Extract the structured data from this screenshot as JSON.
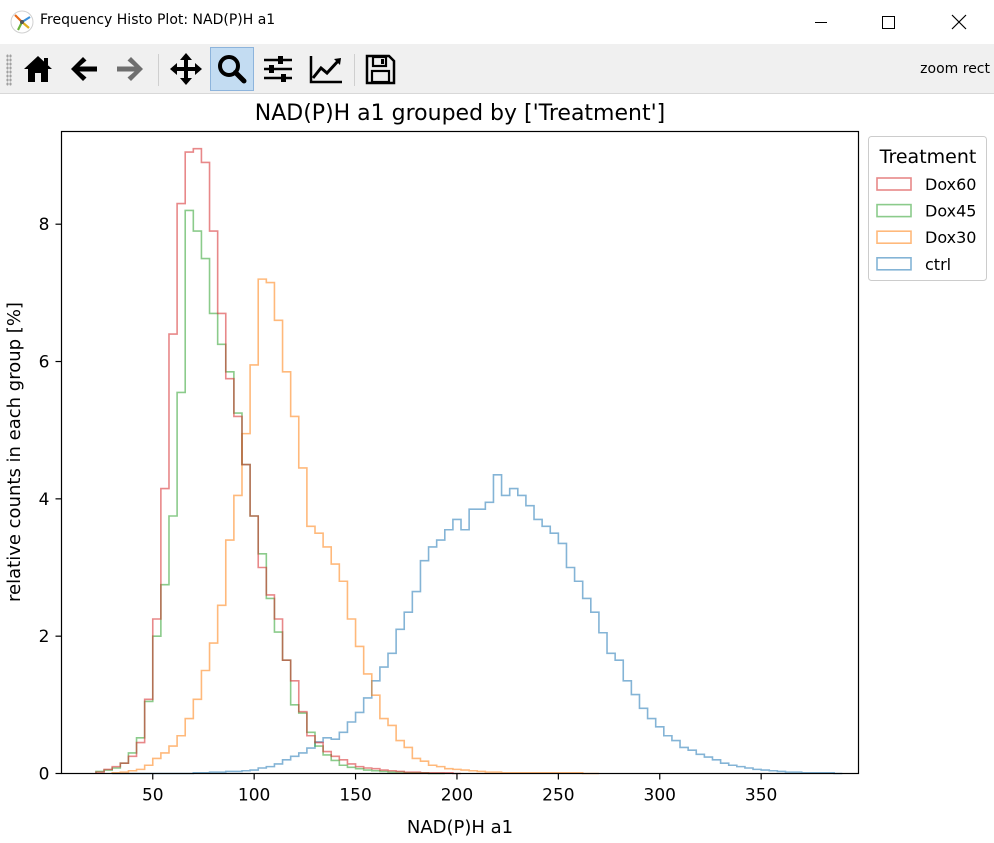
{
  "window": {
    "title": "Frequency Histo Plot: NAD(P)H a1",
    "minimize_symbol": "—",
    "maximize_symbol": "☐",
    "close_symbol": "✕"
  },
  "toolbar": {
    "tools": [
      {
        "name": "home",
        "icon": "home-icon"
      },
      {
        "name": "back",
        "icon": "arrow-left-icon"
      },
      {
        "name": "forward",
        "icon": "arrow-right-icon"
      },
      {
        "name": "pan",
        "icon": "move-icon"
      },
      {
        "name": "zoom",
        "icon": "magnifier-icon",
        "active": true
      },
      {
        "name": "configure-subplots",
        "icon": "sliders-icon"
      },
      {
        "name": "edit-axis",
        "icon": "line-chart-icon"
      },
      {
        "name": "save",
        "icon": "floppy-disk-icon"
      }
    ],
    "mode_label": "zoom rect"
  },
  "chart_data": {
    "type": "histogram",
    "title": "NAD(P)H a1 grouped by ['Treatment']",
    "xlabel": "NAD(P)H a1",
    "ylabel": "relative counts in each group [%]",
    "xlim": [
      5,
      398
    ],
    "ylim": [
      0,
      9.35
    ],
    "xticks": [
      50,
      100,
      150,
      200,
      250,
      300,
      350
    ],
    "yticks": [
      0,
      2,
      4,
      6,
      8
    ],
    "grid": false,
    "legend": {
      "title": "Treatment",
      "position": "outside-upper-right"
    },
    "bin_width": 4,
    "series": [
      {
        "name": "ctrl",
        "color": "#1f77b4",
        "start": 30,
        "values": [
          0,
          0,
          0,
          0,
          0,
          0,
          0,
          0,
          0,
          0,
          0.01,
          0.01,
          0.02,
          0.02,
          0.03,
          0.03,
          0.04,
          0.05,
          0.08,
          0.1,
          0.14,
          0.2,
          0.25,
          0.3,
          0.37,
          0.46,
          0.52,
          0.5,
          0.6,
          0.75,
          0.89,
          1.1,
          1.35,
          1.55,
          1.75,
          2.1,
          2.35,
          2.65,
          3.1,
          3.3,
          3.4,
          3.55,
          3.7,
          3.55,
          3.85,
          3.85,
          3.95,
          4.35,
          4.05,
          4.15,
          4.05,
          3.9,
          3.7,
          3.6,
          3.5,
          3.35,
          3.0,
          2.8,
          2.55,
          2.35,
          2.05,
          1.75,
          1.65,
          1.35,
          1.15,
          0.95,
          0.8,
          0.68,
          0.55,
          0.48,
          0.38,
          0.34,
          0.28,
          0.24,
          0.2,
          0.15,
          0.12,
          0.1,
          0.08,
          0.06,
          0.05,
          0.04,
          0.03,
          0.02,
          0.02,
          0.01,
          0.01,
          0.01,
          0.01,
          0
        ]
      },
      {
        "name": "Dox30",
        "color": "#ff7f0e",
        "start": 30,
        "values": [
          0.01,
          0.02,
          0.04,
          0.06,
          0.12,
          0.22,
          0.3,
          0.4,
          0.55,
          0.8,
          1.08,
          1.5,
          1.9,
          2.45,
          3.4,
          4.05,
          4.95,
          5.95,
          7.2,
          7.15,
          6.6,
          5.85,
          5.2,
          4.45,
          3.6,
          3.5,
          3.3,
          3.05,
          2.8,
          2.25,
          1.85,
          1.45,
          1.14,
          0.8,
          0.7,
          0.48,
          0.38,
          0.22,
          0.18,
          0.12,
          0.1,
          0.07,
          0.06,
          0.05,
          0.04,
          0.03,
          0.02,
          0.02,
          0.01,
          0.01,
          0.01,
          0.01,
          0.01,
          0.01,
          0.01,
          0.01,
          0.01,
          0.01,
          0,
          0
        ]
      },
      {
        "name": "Dox45",
        "color": "#2ca02c",
        "start": 22,
        "values": [
          0.03,
          0.05,
          0.08,
          0.15,
          0.3,
          0.52,
          1.05,
          2.0,
          2.75,
          3.75,
          5.55,
          8.2,
          7.9,
          7.5,
          6.7,
          6.25,
          5.85,
          5.25,
          4.5,
          3.75,
          3.2,
          2.55,
          2.06,
          1.65,
          1.0,
          0.88,
          0.6,
          0.4,
          0.27,
          0.19,
          0.12,
          0.09,
          0.07,
          0.05,
          0.04,
          0.03,
          0.02,
          0.02,
          0.01,
          0.01,
          0.01,
          0,
          0
        ]
      },
      {
        "name": "Dox60",
        "color": "#d62728",
        "start": 22,
        "values": [
          0.02,
          0.06,
          0.1,
          0.15,
          0.25,
          0.45,
          1.08,
          2.25,
          4.15,
          6.4,
          8.3,
          9.05,
          9.1,
          8.9,
          7.9,
          6.7,
          5.75,
          5.2,
          4.5,
          3.75,
          3.0,
          2.6,
          2.25,
          1.65,
          1.35,
          0.9,
          0.55,
          0.45,
          0.32,
          0.25,
          0.2,
          0.14,
          0.1,
          0.08,
          0.07,
          0.05,
          0.04,
          0.03,
          0.02,
          0.02,
          0.01,
          0.01,
          0.01,
          0.01,
          0
        ]
      }
    ]
  }
}
